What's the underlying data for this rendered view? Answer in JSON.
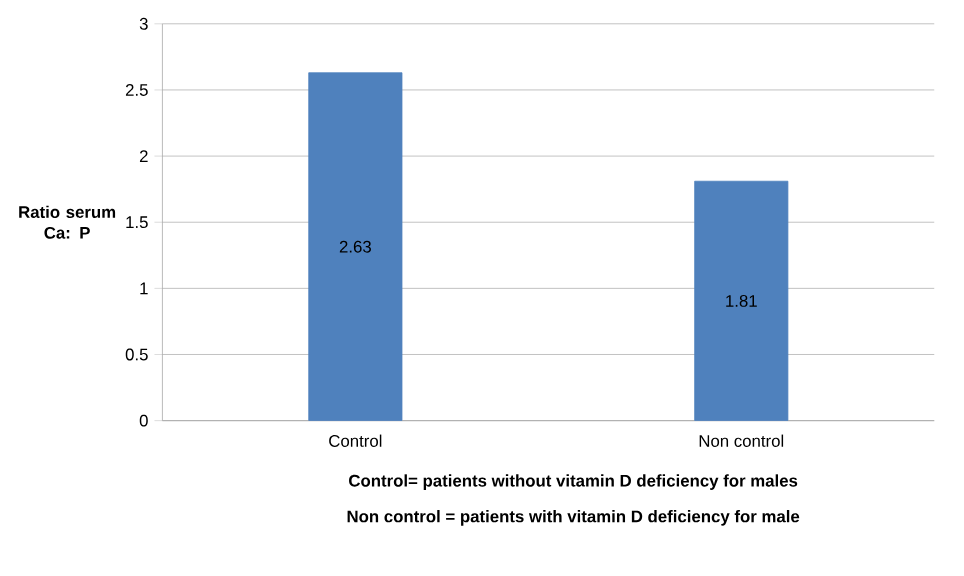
{
  "chart_data": {
    "type": "bar",
    "categories": [
      "Control",
      "Non control"
    ],
    "values": [
      2.63,
      1.81
    ],
    "color": "#4f81bd",
    "data_labels": true,
    "ylabel": "Ratio serum Ca: P",
    "xlabel": "Control= patients without vitamin D deficiency for males",
    "annotations": [
      "Non control = patients with vitamin D deficiency for male"
    ],
    "ylim": [
      0,
      3
    ],
    "yticks": [
      0,
      0.5,
      1,
      1.5,
      2,
      2.5,
      3
    ],
    "grid": "y"
  }
}
